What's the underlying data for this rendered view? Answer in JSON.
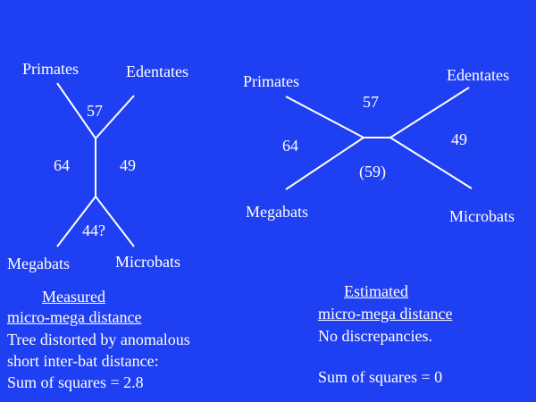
{
  "left_tree": {
    "labels": {
      "top_left": "Primates",
      "top_right": "Edentates",
      "bottom_left": "Megabats",
      "bottom_right": "Microbats"
    },
    "distances": {
      "top_branch": "57",
      "left_path": "64",
      "right_path": "49",
      "bottom_branch": "44?"
    }
  },
  "right_tree": {
    "labels": {
      "top_left": "Primates",
      "top_right": "Edentates",
      "bottom_left": "Megabats",
      "bottom_right": "Microbats"
    },
    "distances": {
      "top_branch": "57",
      "left_path": "64",
      "right_path": "49",
      "bottom_branch": "(59)"
    }
  },
  "left_caption": {
    "line1": "Measured",
    "line2": "micro-mega distance",
    "line3": "Tree distorted by anomalous",
    "line4": "short inter-bat distance:",
    "line5": "Sum of squares = 2.8"
  },
  "right_caption": {
    "line1": "Estimated",
    "line2": "micro-mega distance",
    "line3": "No discrepancies.",
    "line4": "Sum of squares = 0"
  },
  "colors": {
    "background": "#1f3ff2",
    "foreground": "#ffffff"
  }
}
